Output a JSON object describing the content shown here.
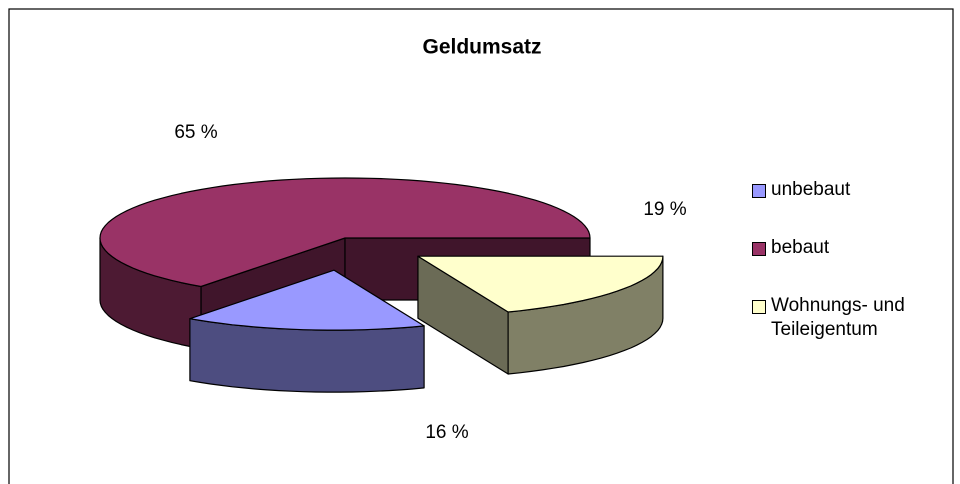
{
  "chart_data": {
    "type": "pie",
    "title": "Geldumsatz",
    "categories": [
      "unbebaut",
      "bebaut",
      "Wohnungs- und Teileigentum"
    ],
    "values": [
      16,
      65,
      19
    ],
    "value_labels": [
      "16 %",
      "65 %",
      "19 %"
    ],
    "colors": [
      "#9999ff",
      "#993366",
      "#ffffcc"
    ],
    "legend": "right"
  }
}
